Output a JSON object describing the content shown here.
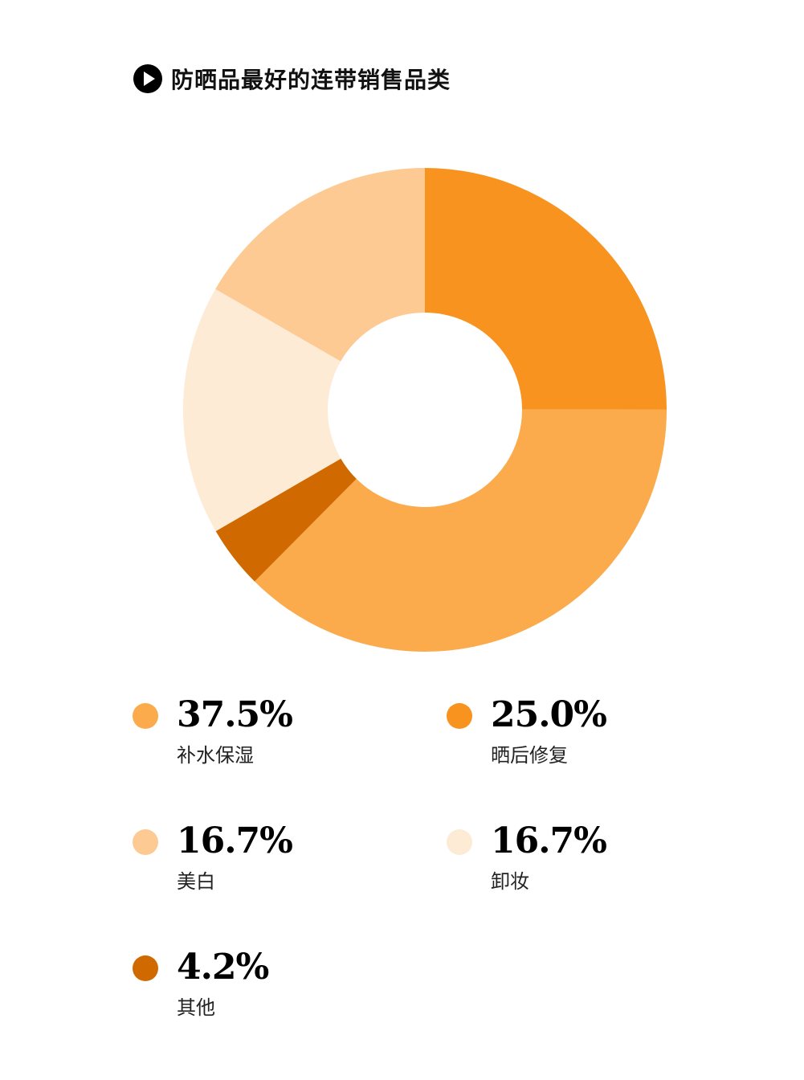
{
  "title": "防晒品最好的连带销售品类",
  "chart_data": {
    "type": "pie",
    "title": "防晒品最好的连带销售品类",
    "donut": true,
    "start_angle_deg": 0,
    "direction": "clockwise",
    "slices": [
      {
        "label": "晒后修复",
        "value": 25.0,
        "display": "25.0%",
        "color": "#F7931E"
      },
      {
        "label": "补水保湿",
        "value": 37.5,
        "display": "37.5%",
        "color": "#FBAA4C"
      },
      {
        "label": "其他",
        "value": 4.2,
        "display": "4.2%",
        "color": "#D06A00"
      },
      {
        "label": "卸妆",
        "value": 16.7,
        "display": "16.7%",
        "color": "#FDEBD6"
      },
      {
        "label": "美白",
        "value": 16.7,
        "display": "16.7%",
        "color": "#FDCA93"
      }
    ]
  },
  "legend": [
    {
      "value": "37.5%",
      "label": "补水保湿",
      "color": "#FBAA4C"
    },
    {
      "value": "25.0%",
      "label": "晒后修复",
      "color": "#F7931E"
    },
    {
      "value": "16.7%",
      "label": "美白",
      "color": "#FDCA93"
    },
    {
      "value": "16.7%",
      "label": "卸妆",
      "color": "#FDEBD6"
    },
    {
      "value": "4.2%",
      "label": "其他",
      "color": "#D06A00"
    }
  ],
  "icons": {
    "title_icon": "play-circle-icon"
  }
}
